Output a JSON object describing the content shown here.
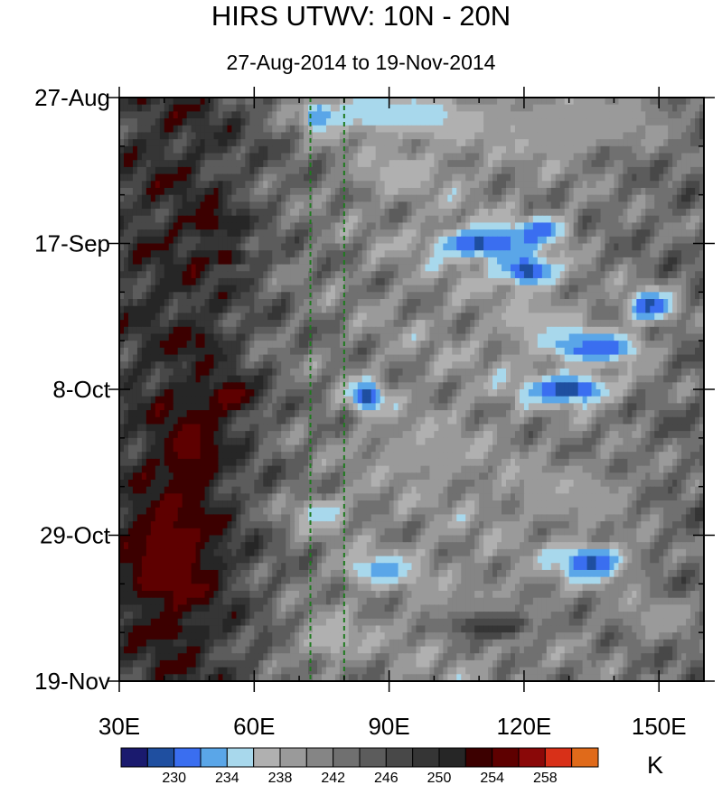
{
  "chart_data": {
    "type": "heatmap",
    "title": "HIRS UTWV: 10N - 20N",
    "subtitle": "27-Aug-2014 to 19-Nov-2014",
    "x_axis": {
      "range": [
        30,
        160
      ],
      "ticks": [
        30,
        60,
        90,
        120,
        150
      ],
      "tick_labels": [
        "30E",
        "60E",
        "90E",
        "120E",
        "150E"
      ],
      "minor_step": 10
    },
    "y_axis": {
      "range_days": [
        0,
        84
      ],
      "inverted": true,
      "ticks": [
        0,
        21,
        42,
        63,
        84
      ],
      "tick_labels": [
        "27-Aug",
        "17-Sep",
        "8-Oct",
        "29-Oct",
        "19-Nov"
      ],
      "minor_step": 7
    },
    "reference_lines_lon": [
      72.5,
      80
    ],
    "reference_line_color": "#1f7a1f",
    "colorbar": {
      "unit": "K",
      "levels": [
        226,
        228,
        230,
        232,
        234,
        236,
        238,
        240,
        242,
        244,
        246,
        248,
        250,
        252,
        254,
        256,
        258,
        260
      ],
      "label_values": [
        "230",
        "234",
        "238",
        "242",
        "246",
        "250",
        "254",
        "258"
      ],
      "colors": [
        "#1a1a6e",
        "#1f4fa0",
        "#3a6ef0",
        "#5aa6e8",
        "#a8d8ec",
        "#b0b0b0",
        "#9a9a9a",
        "#858585",
        "#707070",
        "#5c5c5c",
        "#484848",
        "#353535",
        "#262626",
        "#3c0000",
        "#5e0000",
        "#8a0808",
        "#d83018",
        "#e06a1a"
      ]
    },
    "features": [
      {
        "lon": 85,
        "day": 2,
        "lon_sigma": 12,
        "day_sigma": 3,
        "value": 234.0
      },
      {
        "lon": 74,
        "day": 3,
        "lon_sigma": 3,
        "day_sigma": 2,
        "value": 233.5
      },
      {
        "lon": 100,
        "day": 3,
        "lon_sigma": 9,
        "day_sigma": 3,
        "value": 236.0
      },
      {
        "lon": 120,
        "day": 5,
        "lon_sigma": 12,
        "day_sigma": 4,
        "value": 238.0
      },
      {
        "lon": 140,
        "day": 3,
        "lon_sigma": 14,
        "day_sigma": 4,
        "value": 238.5
      },
      {
        "lon": 92,
        "day": 11,
        "lon_sigma": 10,
        "day_sigma": 3,
        "value": 237.0
      },
      {
        "lon": 110,
        "day": 21,
        "lon_sigma": 11,
        "day_sigma": 2.4,
        "value": 229.5
      },
      {
        "lon": 124,
        "day": 19,
        "lon_sigma": 6,
        "day_sigma": 2,
        "value": 231.5
      },
      {
        "lon": 121,
        "day": 25,
        "lon_sigma": 7,
        "day_sigma": 2.4,
        "value": 229.5
      },
      {
        "lon": 148,
        "day": 30,
        "lon_sigma": 6,
        "day_sigma": 2.5,
        "value": 229.5
      },
      {
        "lon": 137,
        "day": 36,
        "lon_sigma": 10,
        "day_sigma": 2.3,
        "value": 229.8
      },
      {
        "lon": 130,
        "day": 42,
        "lon_sigma": 11,
        "day_sigma": 2.4,
        "value": 229.0
      },
      {
        "lon": 85,
        "day": 43,
        "lon_sigma": 4,
        "day_sigma": 2.3,
        "value": 229.0
      },
      {
        "lon": 125,
        "day": 33,
        "lon_sigma": 10,
        "day_sigma": 4,
        "value": 236.5
      },
      {
        "lon": 97,
        "day": 51,
        "lon_sigma": 12,
        "day_sigma": 4,
        "value": 238.0
      },
      {
        "lon": 75,
        "day": 60,
        "lon_sigma": 7,
        "day_sigma": 2.5,
        "value": 234.5
      },
      {
        "lon": 130,
        "day": 57,
        "lon_sigma": 14,
        "day_sigma": 4,
        "value": 238.0
      },
      {
        "lon": 135,
        "day": 67,
        "lon_sigma": 9,
        "day_sigma": 2.8,
        "value": 229.5
      },
      {
        "lon": 88,
        "day": 68,
        "lon_sigma": 9,
        "day_sigma": 2.5,
        "value": 233.0
      },
      {
        "lon": 110,
        "day": 73,
        "lon_sigma": 14,
        "day_sigma": 4,
        "value": 240.0
      },
      {
        "lon": 77,
        "day": 78,
        "lon_sigma": 8,
        "day_sigma": 3,
        "value": 236.0
      },
      {
        "lon": 150,
        "day": 75,
        "lon_sigma": 8,
        "day_sigma": 3,
        "value": 238.0
      },
      {
        "lon": 50,
        "day": 18,
        "lon_sigma": 6,
        "day_sigma": 2,
        "value": 253.5
      },
      {
        "lon": 54,
        "day": 23,
        "lon_sigma": 6,
        "day_sigma": 1.2,
        "value": 253.5
      },
      {
        "lon": 48,
        "day": 35,
        "lon_sigma": 5,
        "day_sigma": 2,
        "value": 252.5
      },
      {
        "lon": 55,
        "day": 43,
        "lon_sigma": 6,
        "day_sigma": 2.5,
        "value": 255.5
      },
      {
        "lon": 46,
        "day": 50,
        "lon_sigma": 7,
        "day_sigma": 6,
        "value": 254.5
      },
      {
        "lon": 41,
        "day": 66,
        "lon_sigma": 11,
        "day_sigma": 9,
        "value": 256.0
      },
      {
        "lon": 38,
        "day": 77,
        "lon_sigma": 8,
        "day_sigma": 1.3,
        "value": 253.0
      },
      {
        "lon": 113,
        "day": 76,
        "lon_sigma": 8,
        "day_sigma": 1.8,
        "value": 253.0
      }
    ]
  }
}
